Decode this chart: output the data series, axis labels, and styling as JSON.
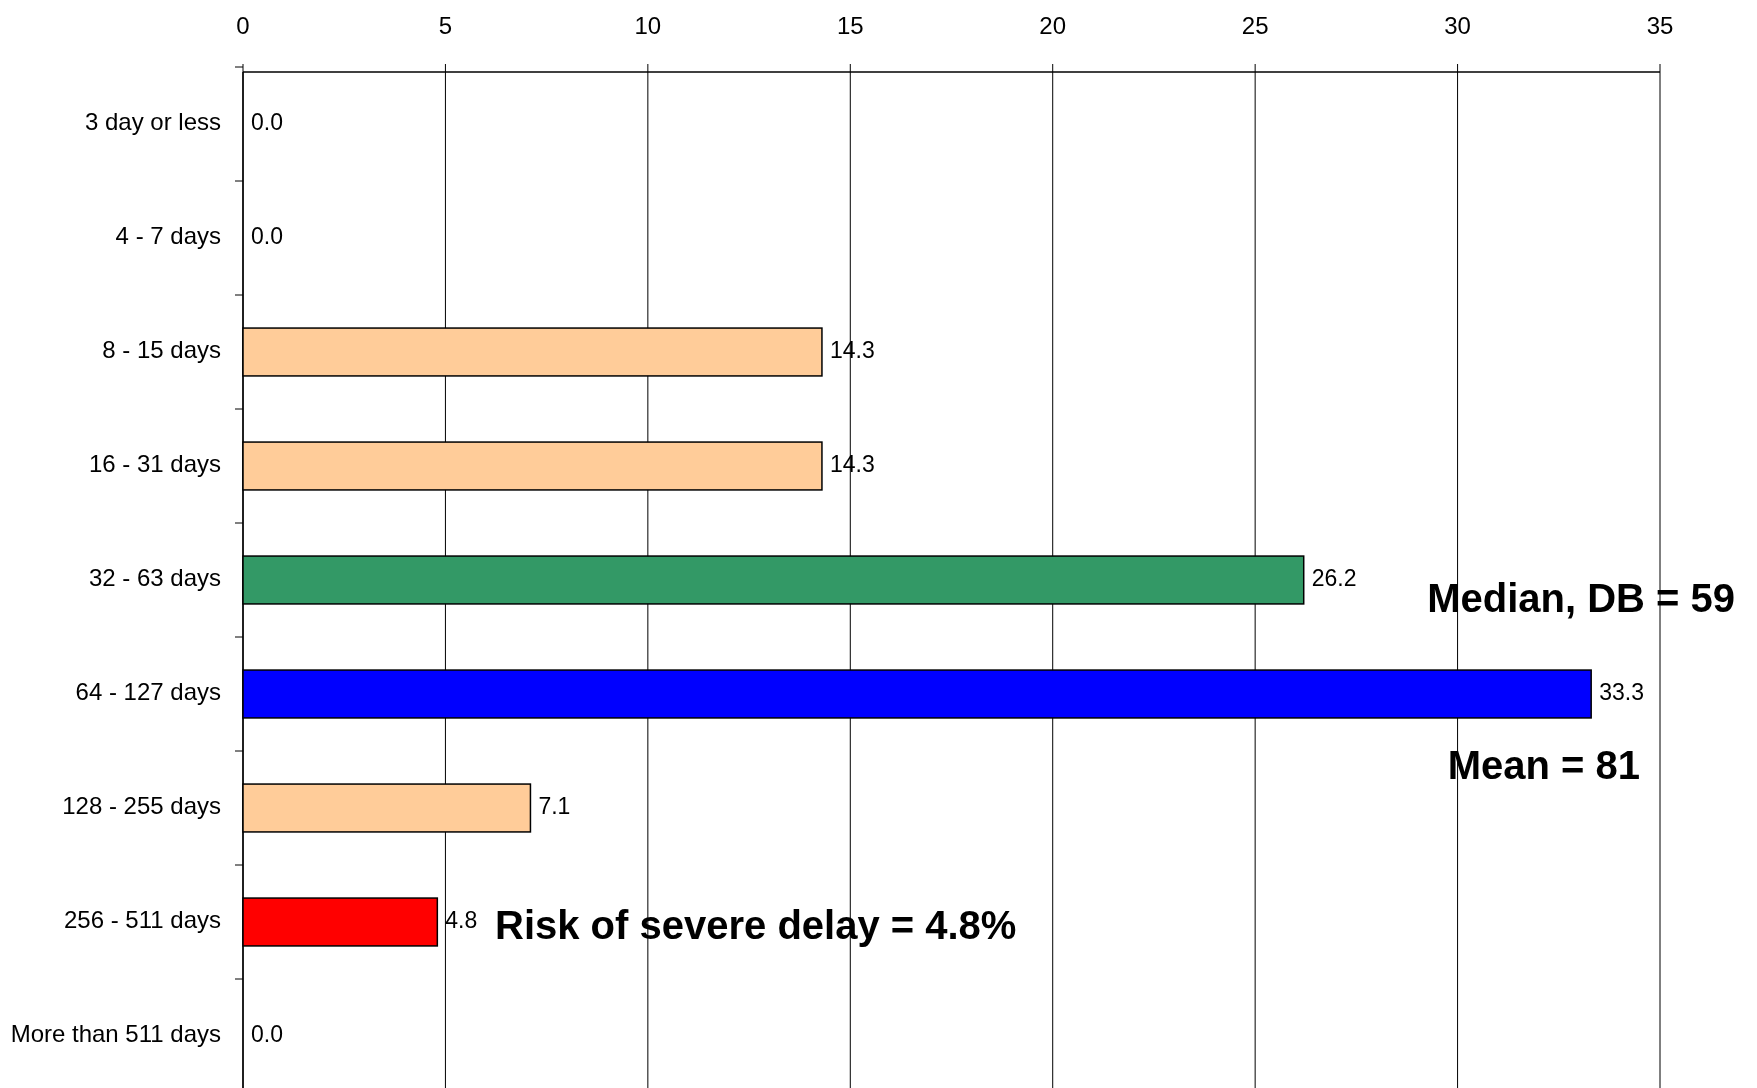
{
  "chart_data": {
    "type": "bar",
    "orientation": "horizontal",
    "categories": [
      "3 day or less",
      "4 - 7 days",
      "8 - 15 days",
      "16 - 31 days",
      "32 - 63 days",
      "64 - 127 days",
      "128 - 255 days",
      "256 - 511 days",
      "More than 511 days"
    ],
    "values": [
      0,
      0,
      14.3,
      14.3,
      26.2,
      33.3,
      7.1,
      4.8,
      0
    ],
    "colors": [
      "#ffcc99",
      "#ffcc99",
      "#ffcc99",
      "#ffcc99",
      "#339966",
      "#0000ff",
      "#ffcc99",
      "#ff0000",
      "#ffcc99"
    ],
    "value_labels": [
      "0.0",
      "0.0",
      "14.3",
      "14.3",
      "26.2",
      "33.3",
      "7.1",
      "4.8",
      "0.0"
    ],
    "xlim": [
      0,
      35
    ],
    "xticks": [
      0,
      5,
      10,
      15,
      20,
      25,
      30,
      35
    ],
    "grid": "x",
    "annotations": [
      "Median, DB = 59",
      "Mean = 81",
      "Risk of severe delay = 4.8%"
    ]
  }
}
